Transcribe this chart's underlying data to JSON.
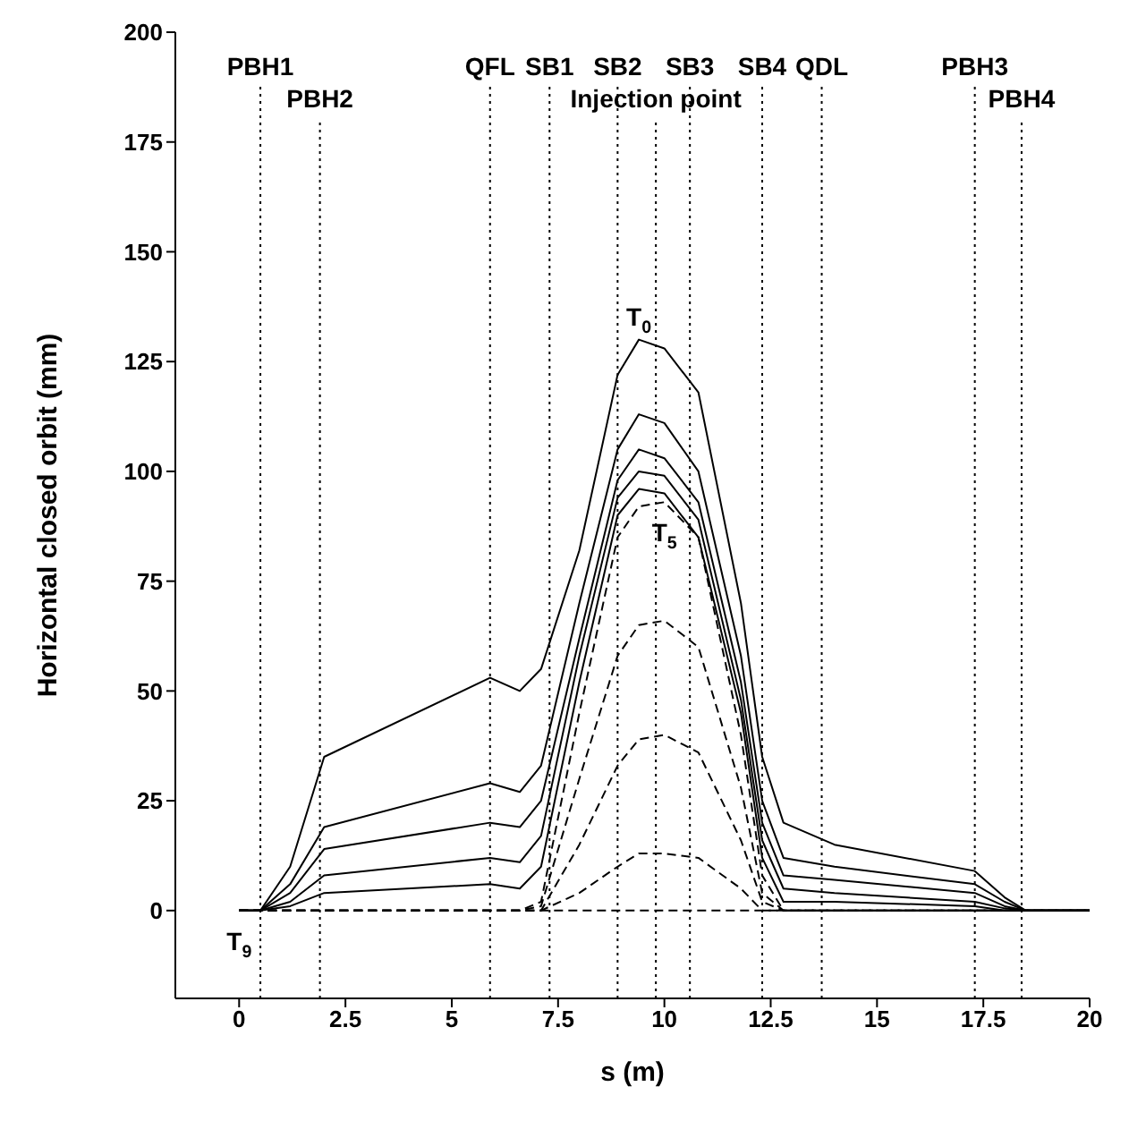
{
  "chart_data": {
    "type": "line",
    "xlabel": "s (m)",
    "ylabel": "Horizontal closed orbit (mm)",
    "x": [
      0,
      0.5,
      1.2,
      2,
      5.9,
      6.6,
      7.1,
      8,
      8.9,
      9.4,
      10,
      10.8,
      11.8,
      12.3,
      12.8,
      14,
      17.3,
      18,
      18.5,
      20
    ],
    "series": [
      {
        "name": "T$_{0}$",
        "color": "#000000",
        "line_style": "solid",
        "values": [
          0,
          0,
          10,
          35,
          53,
          50,
          55,
          82,
          122,
          130,
          128,
          118,
          70,
          35,
          20,
          15,
          9,
          3,
          0,
          0
        ]
      },
      {
        "color": "#000000",
        "line_style": "solid",
        "values": [
          0,
          0,
          6,
          19,
          29,
          27,
          33,
          70,
          105,
          113,
          111,
          100,
          58,
          25,
          12,
          10,
          6,
          2,
          0,
          0
        ]
      },
      {
        "color": "#000000",
        "line_style": "solid",
        "values": [
          0,
          0,
          4,
          14,
          20,
          19,
          25,
          62,
          98,
          105,
          103,
          93,
          52,
          20,
          8,
          7,
          4,
          1,
          0,
          0
        ]
      },
      {
        "color": "#000000",
        "line_style": "solid",
        "values": [
          0,
          0,
          2,
          8,
          12,
          11,
          17,
          58,
          94,
          100,
          99,
          89,
          48,
          16,
          5,
          4,
          2,
          0.5,
          0,
          0
        ]
      },
      {
        "color": "#000000",
        "line_style": "solid",
        "values": [
          0,
          0,
          1,
          4,
          6,
          5,
          10,
          52,
          90,
          96,
          95,
          85,
          45,
          12,
          2,
          2,
          1,
          0,
          0,
          0
        ]
      },
      {
        "name": "T$_{5}$",
        "color": "#000000",
        "line_style": "dashed",
        "values": [
          0,
          0,
          0,
          0,
          0,
          0,
          2,
          45,
          85,
          92,
          93,
          85,
          40,
          8,
          0,
          0,
          0,
          0,
          0,
          0
        ]
      },
      {
        "color": "#000000",
        "line_style": "dashed",
        "values": [
          0,
          0,
          0,
          0,
          0,
          0,
          1,
          30,
          58,
          65,
          66,
          60,
          28,
          4,
          0,
          0,
          0,
          0,
          0,
          0
        ]
      },
      {
        "color": "#000000",
        "line_style": "dashed",
        "values": [
          0,
          0,
          0,
          0,
          0,
          0,
          0,
          15,
          33,
          39,
          40,
          36,
          16,
          2,
          0,
          0,
          0,
          0,
          0,
          0
        ]
      },
      {
        "color": "#000000",
        "line_style": "dashed",
        "values": [
          0,
          0,
          0,
          0,
          0,
          0,
          0,
          4,
          10,
          13,
          13,
          12,
          5,
          0,
          0,
          0,
          0,
          0,
          0,
          0
        ]
      },
      {
        "name": "T$_{9}$",
        "color": "#000000",
        "line_style": "dashed",
        "values": [
          0,
          0,
          0,
          0,
          0,
          0,
          0,
          0,
          0,
          0,
          0,
          0,
          0,
          0,
          0,
          0,
          0,
          0,
          0,
          0
        ]
      }
    ],
    "xlim": [
      -1.5,
      20
    ],
    "xticks": [
      0,
      2.5,
      5,
      7.5,
      10,
      12.5,
      15,
      17.5,
      20
    ],
    "ylim": [
      -20,
      200
    ],
    "yticks": [
      0,
      25,
      50,
      75,
      100,
      125,
      150,
      175,
      200
    ],
    "marker": "none",
    "ref_lines": [
      {
        "axis": "x",
        "value": 0.5,
        "label": "PBH1",
        "line_style": "dotted"
      },
      {
        "axis": "x",
        "value": 1.9,
        "label": "PBH2",
        "line_style": "dotted"
      },
      {
        "axis": "x",
        "value": 5.9,
        "label": "QFL",
        "line_style": "dotted"
      },
      {
        "axis": "x",
        "value": 7.3,
        "label": "SB1",
        "line_style": "dotted"
      },
      {
        "axis": "x",
        "value": 8.9,
        "label": "SB2",
        "line_style": "dotted"
      },
      {
        "axis": "x",
        "value": 9.8,
        "label": "Injection point",
        "line_style": "dotted"
      },
      {
        "axis": "x",
        "value": 10.6,
        "label": "SB3",
        "line_style": "dotted"
      },
      {
        "axis": "x",
        "value": 12.3,
        "label": "SB4",
        "line_style": "dotted"
      },
      {
        "axis": "x",
        "value": 13.7,
        "label": "QDL",
        "line_style": "dotted"
      },
      {
        "axis": "x",
        "value": 17.3,
        "label": "PBH3",
        "line_style": "dotted"
      },
      {
        "axis": "x",
        "value": 18.4,
        "label": "PBH4",
        "line_style": "dotted"
      }
    ]
  }
}
